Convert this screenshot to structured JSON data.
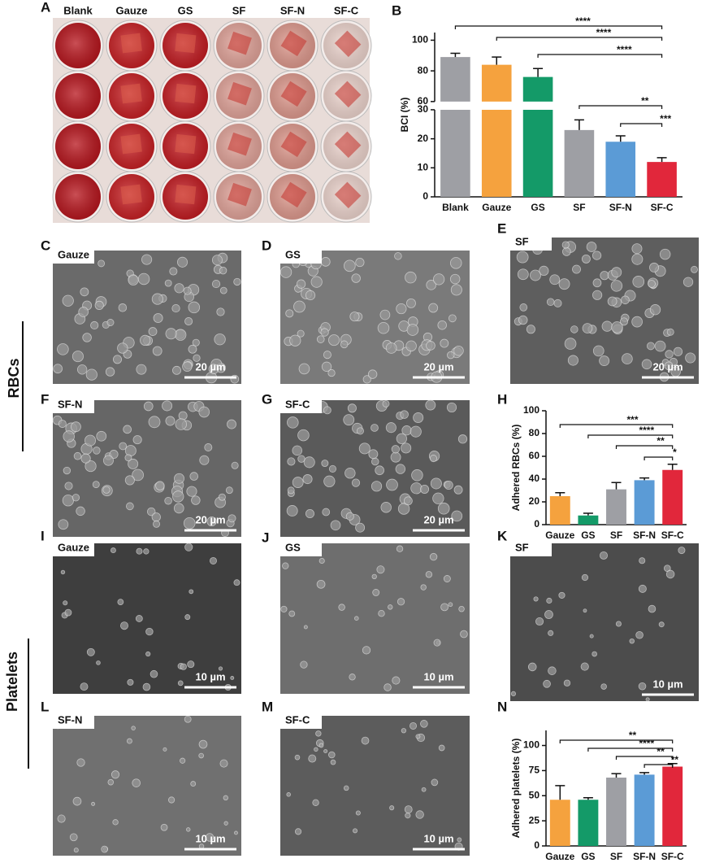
{
  "panel_labels": [
    "A",
    "B",
    "C",
    "D",
    "E",
    "F",
    "G",
    "H",
    "I",
    "J",
    "K",
    "L",
    "M",
    "N"
  ],
  "plate": {
    "columns": [
      "Blank",
      "Gauze",
      "GS",
      "SF",
      "SF-N",
      "SF-C"
    ]
  },
  "side_labels": [
    "RBCs",
    "Platelets"
  ],
  "images": [
    {
      "label": "Gauze",
      "scale": "20 µm"
    },
    {
      "label": "GS",
      "scale": "20 µm"
    },
    {
      "label": "SF",
      "scale": "20 µm"
    },
    {
      "label": "SF-N",
      "scale": "20 µm"
    },
    {
      "label": "SF-C",
      "scale": "20 µm"
    },
    {
      "label": "Gauze",
      "scale": "10 µm"
    },
    {
      "label": "GS",
      "scale": "10 µm"
    },
    {
      "label": "SF",
      "scale": "10 µm"
    },
    {
      "label": "SF-N",
      "scale": "10 µm"
    },
    {
      "label": "SF-C",
      "scale": "10 µm"
    }
  ],
  "chart_data": [
    {
      "type": "bar",
      "y_label": "BCI (%)",
      "categories": [
        "Blank",
        "Gauze",
        "GS",
        "SF",
        "SF-N",
        "SF-C"
      ],
      "values": [
        89,
        84,
        76,
        23,
        19,
        12
      ],
      "errors": [
        2.5,
        5,
        5.5,
        3.5,
        2,
        1.5
      ],
      "colors": [
        "#9e9fa4",
        "#f5a23e",
        "#149a68",
        "#9e9fa4",
        "#5b9bd6",
        "#e1273b"
      ],
      "ylim": [
        0,
        105
      ],
      "ybreak": [
        30,
        60
      ],
      "yticks": [
        0,
        10,
        20,
        30,
        60,
        80,
        100
      ],
      "annotations": [
        {
          "text": "****",
          "from": "Blank",
          "to": "SF-C"
        },
        {
          "text": "****",
          "from": "Gauze",
          "to": "SF-C"
        },
        {
          "text": "****",
          "from": "GS",
          "to": "SF-C"
        },
        {
          "text": "**",
          "from": "SF",
          "to": "SF-C"
        },
        {
          "text": "***",
          "from": "SF-N",
          "to": "SF-C"
        }
      ]
    },
    {
      "type": "bar",
      "y_label": "Adhered RBCs (%)",
      "categories": [
        "Gauze",
        "GS",
        "SF",
        "SF-N",
        "SF-C"
      ],
      "values": [
        25,
        8,
        31,
        39,
        48
      ],
      "errors": [
        3,
        2,
        6,
        2,
        5
      ],
      "colors": [
        "#f5a23e",
        "#149a68",
        "#9e9fa4",
        "#5b9bd6",
        "#e1273b"
      ],
      "ylim": [
        0,
        100
      ],
      "yticks": [
        0,
        20,
        40,
        60,
        80,
        100
      ],
      "annotations": [
        {
          "text": "***",
          "from": "Gauze",
          "to": "SF-C"
        },
        {
          "text": "****",
          "from": "GS",
          "to": "SF-C"
        },
        {
          "text": "**",
          "from": "SF",
          "to": "SF-C"
        },
        {
          "text": "*",
          "from": "SF-N",
          "to": "SF-C"
        }
      ]
    },
    {
      "type": "bar",
      "y_label": "Adhered platelets (%)",
      "categories": [
        "Gauze",
        "GS",
        "SF",
        "SF-N",
        "SF-C"
      ],
      "values": [
        46,
        46,
        68,
        71,
        79
      ],
      "errors": [
        14,
        2,
        4,
        2,
        3
      ],
      "colors": [
        "#f5a23e",
        "#149a68",
        "#9e9fa4",
        "#5b9bd6",
        "#e1273b"
      ],
      "ylim": [
        0,
        115
      ],
      "yticks": [
        0,
        25,
        50,
        75,
        100
      ],
      "annotations": [
        {
          "text": "**",
          "from": "Gauze",
          "to": "SF-C"
        },
        {
          "text": "****",
          "from": "GS",
          "to": "SF-C"
        },
        {
          "text": "**",
          "from": "SF",
          "to": "SF-C"
        },
        {
          "text": "**",
          "from": "SF-N",
          "to": "SF-C"
        }
      ]
    }
  ]
}
